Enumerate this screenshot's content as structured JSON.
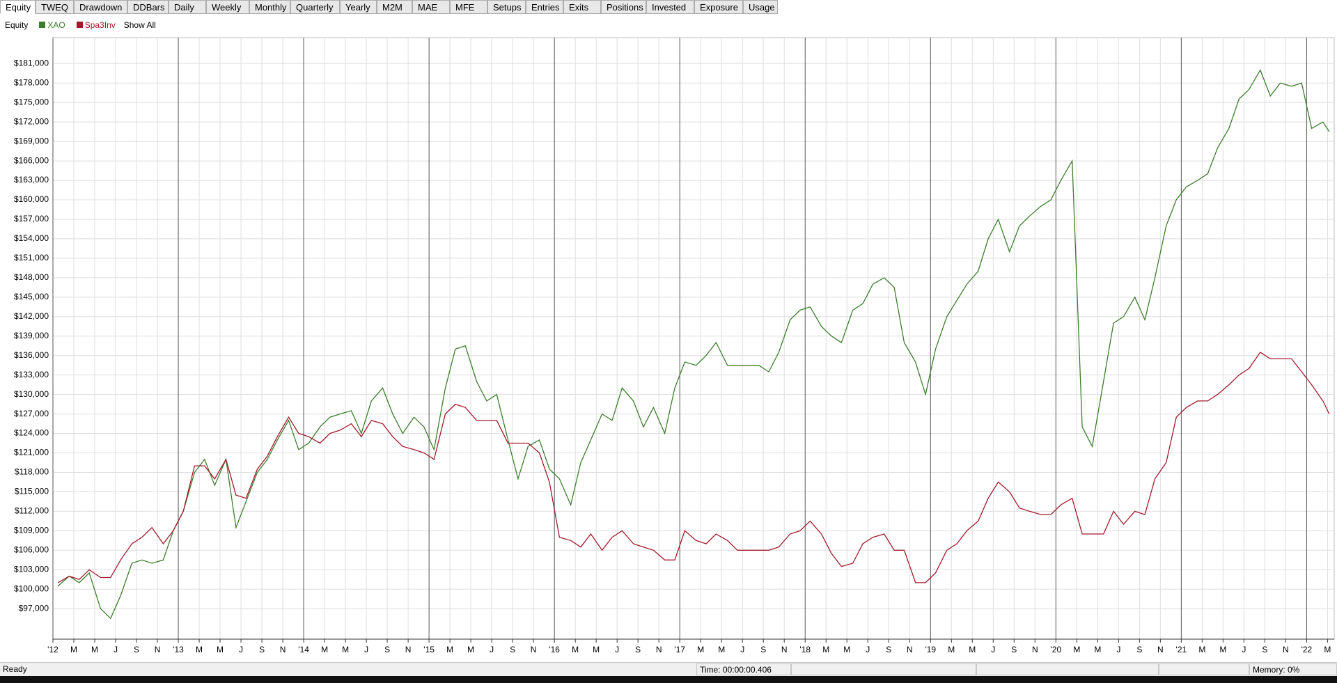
{
  "tabs": [
    "Equity",
    "TWEQ",
    "Drawdown",
    "DDBars",
    "Daily",
    "Weekly",
    "Monthly",
    "Quarterly",
    "Yearly",
    "M2M",
    "MAE",
    "MFE",
    "Setups",
    "Entries",
    "Exits",
    "Positions",
    "Invested",
    "Exposure",
    "Usage"
  ],
  "show_all": "Show All",
  "status": {
    "ready": "Ready",
    "time": "Time: 00:00:00.406",
    "memory": "Memory: 0%"
  },
  "chart_data": {
    "type": "line",
    "title": "Equity",
    "grid": true,
    "x": [
      2012.04,
      2012.13,
      2012.21,
      2012.29,
      2012.38,
      2012.46,
      2012.54,
      2012.63,
      2012.71,
      2012.79,
      2012.88,
      2012.96,
      2013.04,
      2013.13,
      2013.21,
      2013.29,
      2013.38,
      2013.46,
      2013.54,
      2013.63,
      2013.71,
      2013.79,
      2013.88,
      2013.96,
      2014.04,
      2014.13,
      2014.21,
      2014.29,
      2014.38,
      2014.46,
      2014.54,
      2014.63,
      2014.71,
      2014.79,
      2014.88,
      2014.96,
      2015.04,
      2015.13,
      2015.21,
      2015.29,
      2015.38,
      2015.46,
      2015.54,
      2015.63,
      2015.71,
      2015.79,
      2015.88,
      2015.96,
      2016.04,
      2016.13,
      2016.21,
      2016.29,
      2016.38,
      2016.46,
      2016.54,
      2016.63,
      2016.71,
      2016.79,
      2016.88,
      2016.96,
      2017.04,
      2017.13,
      2017.21,
      2017.29,
      2017.38,
      2017.46,
      2017.54,
      2017.63,
      2017.71,
      2017.79,
      2017.88,
      2017.96,
      2018.04,
      2018.13,
      2018.21,
      2018.29,
      2018.38,
      2018.46,
      2018.54,
      2018.63,
      2018.71,
      2018.79,
      2018.88,
      2018.96,
      2019.04,
      2019.13,
      2019.21,
      2019.29,
      2019.38,
      2019.46,
      2019.54,
      2019.63,
      2019.71,
      2019.79,
      2019.88,
      2019.96,
      2020.04,
      2020.13,
      2020.21,
      2020.29,
      2020.38,
      2020.46,
      2020.54,
      2020.63,
      2020.71,
      2020.79,
      2020.88,
      2020.96,
      2021.04,
      2021.13,
      2021.21,
      2021.29,
      2021.38,
      2021.46,
      2021.54,
      2021.63,
      2021.71,
      2021.79,
      2021.88,
      2021.96,
      2022.04,
      2022.13,
      2022.18
    ],
    "series": [
      {
        "name": "XAO",
        "color": "#3b7d2b",
        "values": [
          100500,
          102000,
          101000,
          102500,
          97000,
          95500,
          99000,
          104000,
          104500,
          104000,
          104500,
          109000,
          112000,
          118000,
          120000,
          116000,
          120000,
          109500,
          113500,
          118000,
          120000,
          123000,
          126000,
          121500,
          122500,
          125000,
          126500,
          127000,
          127500,
          124000,
          129000,
          131000,
          127000,
          124000,
          126500,
          125000,
          121500,
          131000,
          137000,
          137500,
          132000,
          129000,
          130000,
          123000,
          117000,
          122000,
          123000,
          118500,
          117000,
          113000,
          119500,
          123000,
          127000,
          126000,
          131000,
          129000,
          125000,
          128000,
          124000,
          131000,
          135000,
          134500,
          136000,
          138000,
          134500,
          134500,
          134500,
          134500,
          133500,
          136500,
          141500,
          143000,
          143500,
          140500,
          139000,
          138000,
          143000,
          144000,
          147000,
          148000,
          146500,
          138000,
          135000,
          130000,
          137000,
          142000,
          144500,
          147000,
          149000,
          154000,
          157000,
          152000,
          156000,
          157500,
          159000,
          160000,
          163000,
          166000,
          125000,
          122000,
          132000,
          141000,
          142000,
          145000,
          141500,
          148000,
          156000,
          160000,
          162000,
          163000,
          164000,
          168000,
          171000,
          175500,
          177000,
          180000,
          176000,
          178000,
          177500,
          178000,
          171000,
          172000,
          170500
        ]
      },
      {
        "name": "Spa3Inv",
        "color": "#a3182b",
        "values": [
          101000,
          102000,
          101500,
          103000,
          101800,
          101800,
          104500,
          107000,
          108000,
          109500,
          107000,
          109000,
          112000,
          119000,
          119000,
          117000,
          120000,
          114500,
          114000,
          118500,
          120500,
          123500,
          126500,
          124000,
          123500,
          122500,
          124000,
          124500,
          125500,
          123500,
          126000,
          125500,
          123500,
          122000,
          121500,
          121000,
          120000,
          127000,
          128500,
          128000,
          126000,
          126000,
          126000,
          122500,
          122500,
          122500,
          121000,
          116500,
          108000,
          107500,
          106500,
          108500,
          106000,
          108000,
          109000,
          107000,
          106500,
          106000,
          104500,
          104500,
          109000,
          107500,
          107000,
          108500,
          107500,
          106000,
          106000,
          106000,
          106000,
          106500,
          108500,
          109000,
          110500,
          108500,
          105500,
          103500,
          104000,
          107000,
          108000,
          108500,
          106000,
          106000,
          101000,
          101000,
          102500,
          106000,
          107000,
          109000,
          110500,
          114000,
          116500,
          115000,
          112500,
          112000,
          111500,
          111500,
          113000,
          114000,
          108500,
          108500,
          108500,
          112000,
          110000,
          112000,
          111500,
          117000,
          119500,
          126500,
          128000,
          129000,
          129000,
          130000,
          131500,
          133000,
          134000,
          136500,
          135500,
          135500,
          135500,
          133500,
          131500,
          129000,
          127000
        ]
      }
    ],
    "xlim": [
      2012,
      2022.22
    ],
    "xticks": [
      {
        "value": 2012,
        "label": "'12"
      },
      {
        "value": 2012.1667,
        "label": "M"
      },
      {
        "value": 2012.3333,
        "label": "M"
      },
      {
        "value": 2012.5,
        "label": "J"
      },
      {
        "value": 2012.6667,
        "label": "S"
      },
      {
        "value": 2012.8333,
        "label": "N"
      },
      {
        "value": 2013,
        "label": "'13"
      },
      {
        "value": 2013.1667,
        "label": "M"
      },
      {
        "value": 2013.3333,
        "label": "M"
      },
      {
        "value": 2013.5,
        "label": "J"
      },
      {
        "value": 2013.6667,
        "label": "S"
      },
      {
        "value": 2013.8333,
        "label": "N"
      },
      {
        "value": 2014,
        "label": "'14"
      },
      {
        "value": 2014.1667,
        "label": "M"
      },
      {
        "value": 2014.3333,
        "label": "M"
      },
      {
        "value": 2014.5,
        "label": "J"
      },
      {
        "value": 2014.6667,
        "label": "S"
      },
      {
        "value": 2014.8333,
        "label": "N"
      },
      {
        "value": 2015,
        "label": "'15"
      },
      {
        "value": 2015.1667,
        "label": "M"
      },
      {
        "value": 2015.3333,
        "label": "M"
      },
      {
        "value": 2015.5,
        "label": "J"
      },
      {
        "value": 2015.6667,
        "label": "S"
      },
      {
        "value": 2015.8333,
        "label": "N"
      },
      {
        "value": 2016,
        "label": "'16"
      },
      {
        "value": 2016.1667,
        "label": "M"
      },
      {
        "value": 2016.3333,
        "label": "M"
      },
      {
        "value": 2016.5,
        "label": "J"
      },
      {
        "value": 2016.6667,
        "label": "S"
      },
      {
        "value": 2016.8333,
        "label": "N"
      },
      {
        "value": 2017,
        "label": "'17"
      },
      {
        "value": 2017.1667,
        "label": "M"
      },
      {
        "value": 2017.3333,
        "label": "M"
      },
      {
        "value": 2017.5,
        "label": "J"
      },
      {
        "value": 2017.6667,
        "label": "S"
      },
      {
        "value": 2017.8333,
        "label": "N"
      },
      {
        "value": 2018,
        "label": "'18"
      },
      {
        "value": 2018.1667,
        "label": "M"
      },
      {
        "value": 2018.3333,
        "label": "M"
      },
      {
        "value": 2018.5,
        "label": "J"
      },
      {
        "value": 2018.6667,
        "label": "S"
      },
      {
        "value": 2018.8333,
        "label": "N"
      },
      {
        "value": 2019,
        "label": "'19"
      },
      {
        "value": 2019.1667,
        "label": "M"
      },
      {
        "value": 2019.3333,
        "label": "M"
      },
      {
        "value": 2019.5,
        "label": "J"
      },
      {
        "value": 2019.6667,
        "label": "S"
      },
      {
        "value": 2019.8333,
        "label": "N"
      },
      {
        "value": 2020,
        "label": "'20"
      },
      {
        "value": 2020.1667,
        "label": "M"
      },
      {
        "value": 2020.3333,
        "label": "M"
      },
      {
        "value": 2020.5,
        "label": "J"
      },
      {
        "value": 2020.6667,
        "label": "S"
      },
      {
        "value": 2020.8333,
        "label": "N"
      },
      {
        "value": 2021,
        "label": "'21"
      },
      {
        "value": 2021.1667,
        "label": "M"
      },
      {
        "value": 2021.3333,
        "label": "M"
      },
      {
        "value": 2021.5,
        "label": "J"
      },
      {
        "value": 2021.6667,
        "label": "S"
      },
      {
        "value": 2021.8333,
        "label": "N"
      },
      {
        "value": 2022,
        "label": "'22"
      },
      {
        "value": 2022.1667,
        "label": "M"
      }
    ],
    "ylim": [
      92300,
      185000
    ],
    "yticks": [
      {
        "value": 97000,
        "label": "$97,000"
      },
      {
        "value": 100000,
        "label": "$100,000"
      },
      {
        "value": 103000,
        "label": "$103,000"
      },
      {
        "value": 106000,
        "label": "$106,000"
      },
      {
        "value": 109000,
        "label": "$109,000"
      },
      {
        "value": 112000,
        "label": "$112,000"
      },
      {
        "value": 115000,
        "label": "$115,000"
      },
      {
        "value": 118000,
        "label": "$118,000"
      },
      {
        "value": 121000,
        "label": "$121,000"
      },
      {
        "value": 124000,
        "label": "$124,000"
      },
      {
        "value": 127000,
        "label": "$127,000"
      },
      {
        "value": 130000,
        "label": "$130,000"
      },
      {
        "value": 133000,
        "label": "$133,000"
      },
      {
        "value": 136000,
        "label": "$136,000"
      },
      {
        "value": 139000,
        "label": "$139,000"
      },
      {
        "value": 142000,
        "label": "$142,000"
      },
      {
        "value": 145000,
        "label": "$145,000"
      },
      {
        "value": 148000,
        "label": "$148,000"
      },
      {
        "value": 151000,
        "label": "$151,000"
      },
      {
        "value": 154000,
        "label": "$154,000"
      },
      {
        "value": 157000,
        "label": "$157,000"
      },
      {
        "value": 160000,
        "label": "$160,000"
      },
      {
        "value": 163000,
        "label": "$163,000"
      },
      {
        "value": 166000,
        "label": "$166,000"
      },
      {
        "value": 169000,
        "label": "$169,000"
      },
      {
        "value": 172000,
        "label": "$172,000"
      },
      {
        "value": 175000,
        "label": "$175,000"
      },
      {
        "value": 178000,
        "label": "$178,000"
      },
      {
        "value": 181000,
        "label": "$181,000"
      }
    ]
  }
}
